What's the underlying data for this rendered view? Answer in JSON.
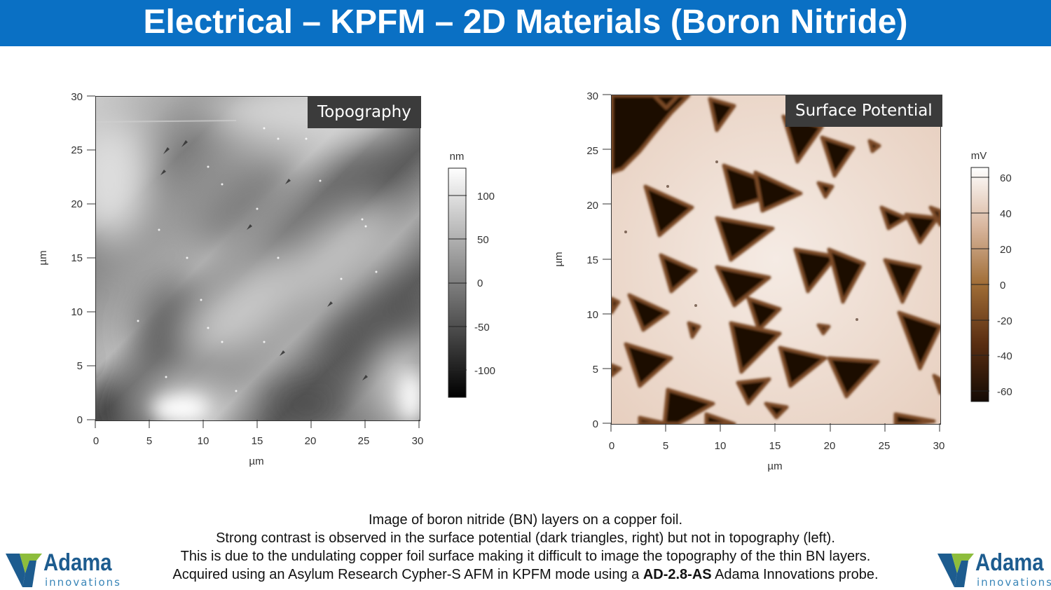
{
  "header": {
    "title": "Electrical – KPFM – 2D Materials (Boron Nitride)"
  },
  "topography": {
    "label": "Topography",
    "x_axis": {
      "title": "µm",
      "ticks": [
        "0",
        "5",
        "10",
        "15",
        "20",
        "25",
        "30"
      ]
    },
    "y_axis": {
      "title": "µm",
      "ticks": [
        "0",
        "5",
        "10",
        "15",
        "20",
        "25",
        "30"
      ]
    },
    "colorbar": {
      "unit": "nm",
      "ticks": [
        "100",
        "50",
        "0",
        "-50",
        "-100"
      ],
      "colors": [
        "#ffffff",
        "#000000"
      ]
    }
  },
  "surface_potential": {
    "label": "Surface Potential",
    "x_axis": {
      "title": "µm",
      "ticks": [
        "0",
        "5",
        "10",
        "15",
        "20",
        "25",
        "30"
      ]
    },
    "y_axis": {
      "title": "µm",
      "ticks": [
        "0",
        "5",
        "10",
        "15",
        "20",
        "25",
        "30"
      ]
    },
    "colorbar": {
      "unit": "mV",
      "ticks": [
        "60",
        "40",
        "20",
        "0",
        "-20",
        "-40",
        "-60"
      ],
      "colors": [
        "#ffffff",
        "#a06d36",
        "#140a04"
      ]
    }
  },
  "caption": {
    "line1": "Image of boron nitride (BN) layers on a copper foil.",
    "line2": "Strong contrast is observed in the surface potential (dark triangles, right) but not in topography (left).",
    "line3": "This is due to the undulating copper foil surface making it difficult to image the topography of the thin BN layers.",
    "line4_pre": "Acquired using an Asylum Research Cypher-S AFM in KPFM mode using a ",
    "line4_probe": "AD-2.8-AS",
    "line4_post": " Adama Innovations probe."
  },
  "logo": {
    "name": "Adama",
    "sub": "innovations",
    "colors": [
      "#1d5c8f",
      "#8dbd3c"
    ]
  }
}
